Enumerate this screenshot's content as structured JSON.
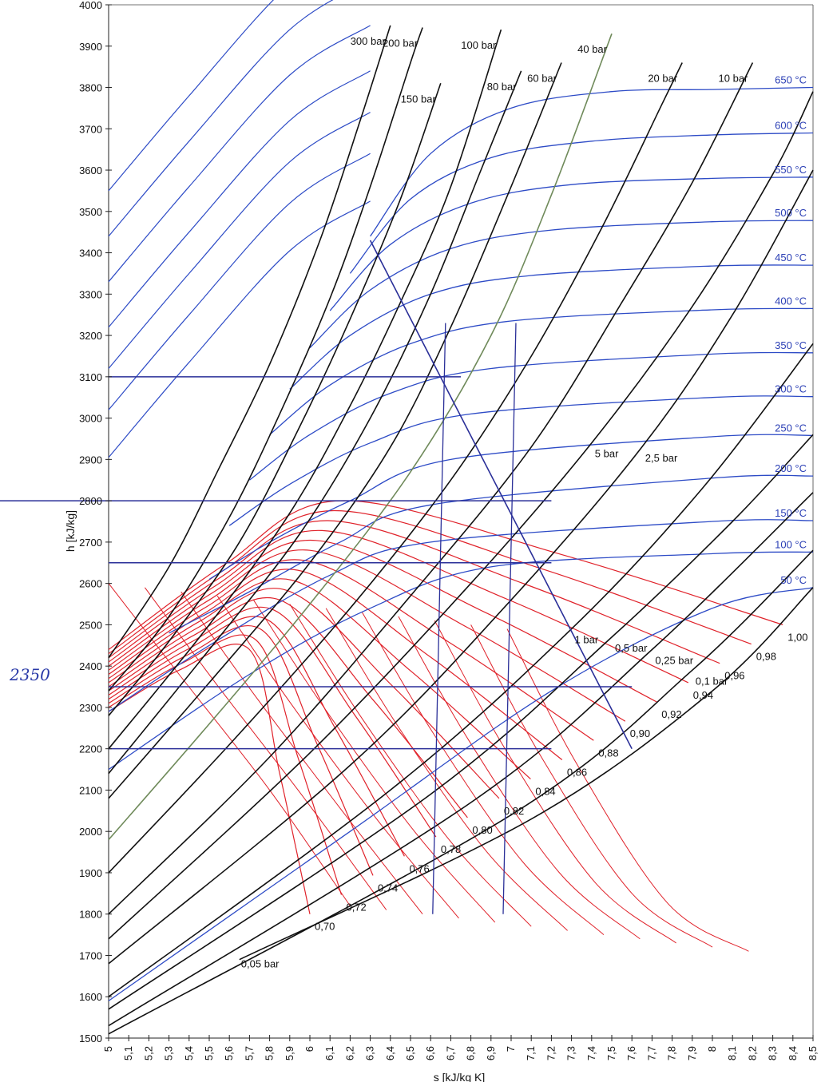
{
  "chart_data": {
    "type": "line",
    "title": "",
    "xlabel": "s [kJ/kg K]",
    "ylabel": "h [kJ/kg]",
    "xlim": [
      5.0,
      8.5
    ],
    "ylim": [
      1500,
      4000
    ],
    "x_ticks": [
      "5",
      "5,1",
      "5,2",
      "5,3",
      "5,4",
      "5,5",
      "5,6",
      "5,7",
      "5,8",
      "5,9",
      "6",
      "6,1",
      "6,2",
      "6,3",
      "6,4",
      "6,5",
      "6,6",
      "6,7",
      "6,8",
      "6,9",
      "7",
      "7,1",
      "7,2",
      "7,3",
      "7,4",
      "7,5",
      "7,6",
      "7,7",
      "7,8",
      "7,9",
      "8",
      "8,1",
      "8,2",
      "8,3",
      "8,4",
      "8,5"
    ],
    "y_ticks": [
      "1500",
      "1600",
      "1700",
      "1800",
      "1900",
      "2000",
      "2100",
      "2200",
      "2300",
      "2400",
      "2500",
      "2600",
      "2700",
      "2800",
      "2900",
      "3000",
      "3100",
      "3200",
      "3300",
      "3400",
      "3500",
      "3600",
      "3700",
      "3800",
      "3900",
      "4000"
    ],
    "colors": {
      "isobar": "#111111",
      "isotherm": "#2d4bc6",
      "quality": "#e0222a",
      "marker": "#2a2f98",
      "isobar_green": "#6f8a5a"
    },
    "isobars": [
      {
        "name": "300 bar",
        "points": [
          [
            5.0,
            2420
          ],
          [
            5.3,
            2640
          ],
          [
            5.55,
            2880
          ],
          [
            5.8,
            3130
          ],
          [
            6.05,
            3430
          ],
          [
            6.25,
            3720
          ],
          [
            6.4,
            3950
          ]
        ]
      },
      {
        "name": "200 bar",
        "points": [
          [
            5.0,
            2340
          ],
          [
            5.3,
            2520
          ],
          [
            5.6,
            2760
          ],
          [
            5.85,
            3010
          ],
          [
            6.1,
            3290
          ],
          [
            6.3,
            3560
          ],
          [
            6.5,
            3860
          ],
          [
            6.56,
            3945
          ]
        ]
      },
      {
        "name": "150 bar",
        "points": [
          [
            5.0,
            2280
          ],
          [
            5.3,
            2460
          ],
          [
            5.65,
            2700
          ],
          [
            5.95,
            2980
          ],
          [
            6.2,
            3240
          ],
          [
            6.45,
            3530
          ],
          [
            6.65,
            3810
          ]
        ]
      },
      {
        "name": "100 bar",
        "points": [
          [
            5.0,
            2200
          ],
          [
            5.5,
            2500
          ],
          [
            5.9,
            2770
          ],
          [
            6.2,
            3030
          ],
          [
            6.45,
            3280
          ],
          [
            6.7,
            3560
          ],
          [
            6.95,
            3940
          ]
        ]
      },
      {
        "name": "80 bar",
        "points": [
          [
            5.0,
            2140
          ],
          [
            5.5,
            2440
          ],
          [
            5.95,
            2720
          ],
          [
            6.3,
            3000
          ],
          [
            6.6,
            3300
          ],
          [
            6.85,
            3600
          ],
          [
            7.05,
            3840
          ]
        ]
      },
      {
        "name": "60 bar",
        "points": [
          [
            5.0,
            2080
          ],
          [
            5.5,
            2360
          ],
          [
            6.0,
            2650
          ],
          [
            6.4,
            2930
          ],
          [
            6.7,
            3220
          ],
          [
            7.0,
            3560
          ],
          [
            7.25,
            3860
          ]
        ]
      },
      {
        "name": "40 bar",
        "points": [
          [
            5.0,
            1980
          ],
          [
            5.5,
            2260
          ],
          [
            6.0,
            2550
          ],
          [
            6.5,
            2870
          ],
          [
            6.9,
            3200
          ],
          [
            7.2,
            3540
          ],
          [
            7.5,
            3930
          ]
        ]
      },
      {
        "name": "20 bar",
        "points": [
          [
            5.0,
            1900
          ],
          [
            5.6,
            2210
          ],
          [
            6.2,
            2540
          ],
          [
            6.7,
            2850
          ],
          [
            7.1,
            3150
          ],
          [
            7.45,
            3460
          ],
          [
            7.75,
            3760
          ],
          [
            7.85,
            3860
          ]
        ]
      },
      {
        "name": "10 bar",
        "points": [
          [
            5.0,
            1800
          ],
          [
            5.8,
            2180
          ],
          [
            6.5,
            2570
          ],
          [
            7.1,
            2930
          ],
          [
            7.55,
            3280
          ],
          [
            7.9,
            3570
          ],
          [
            8.2,
            3860
          ]
        ]
      },
      {
        "name": "5 bar",
        "points": [
          [
            5.0,
            1740
          ],
          [
            6.0,
            2190
          ],
          [
            6.8,
            2600
          ],
          [
            7.4,
            2940
          ],
          [
            7.9,
            3270
          ],
          [
            8.3,
            3590
          ],
          [
            8.5,
            3790
          ]
        ]
      },
      {
        "name": "2,5 bar",
        "points": [
          [
            5.0,
            1680
          ],
          [
            6.2,
            2160
          ],
          [
            7.0,
            2560
          ],
          [
            7.65,
            2930
          ],
          [
            8.1,
            3250
          ],
          [
            8.5,
            3600
          ]
        ]
      },
      {
        "name": "1 bar",
        "points": [
          [
            5.0,
            1600
          ],
          [
            6.4,
            2100
          ],
          [
            7.3,
            2490
          ],
          [
            7.95,
            2830
          ],
          [
            8.5,
            3180
          ]
        ]
      },
      {
        "name": "0,5 bar",
        "points": [
          [
            5.0,
            1570
          ],
          [
            6.6,
            2090
          ],
          [
            7.5,
            2470
          ],
          [
            8.1,
            2750
          ],
          [
            8.5,
            2960
          ]
        ]
      },
      {
        "name": "0,25 bar",
        "points": [
          [
            5.0,
            1530
          ],
          [
            6.8,
            2070
          ],
          [
            7.7,
            2440
          ],
          [
            8.5,
            2820
          ]
        ]
      },
      {
        "name": "0,1 bar",
        "points": [
          [
            5.0,
            1510
          ],
          [
            7.0,
            2040
          ],
          [
            7.9,
            2390
          ],
          [
            8.5,
            2680
          ]
        ]
      },
      {
        "name": "0,05 bar",
        "points": [
          [
            5.65,
            1690
          ],
          [
            7.1,
            2030
          ],
          [
            8.0,
            2340
          ],
          [
            8.5,
            2590
          ]
        ]
      }
    ],
    "isotherms": [
      {
        "name": "650 °C",
        "points": [
          [
            6.3,
            3440
          ],
          [
            6.6,
            3640
          ],
          [
            7.0,
            3750
          ],
          [
            7.5,
            3790
          ],
          [
            8.0,
            3795
          ],
          [
            8.5,
            3800
          ]
        ]
      },
      {
        "name": "600 °C",
        "points": [
          [
            6.2,
            3350
          ],
          [
            6.5,
            3530
          ],
          [
            6.9,
            3630
          ],
          [
            7.4,
            3670
          ],
          [
            8.0,
            3685
          ],
          [
            8.5,
            3690
          ]
        ]
      },
      {
        "name": "550 °C",
        "points": [
          [
            6.1,
            3260
          ],
          [
            6.4,
            3420
          ],
          [
            6.8,
            3520
          ],
          [
            7.3,
            3565
          ],
          [
            8.0,
            3580
          ],
          [
            8.5,
            3583
          ]
        ]
      },
      {
        "name": "500 °C",
        "points": [
          [
            6.0,
            3170
          ],
          [
            6.3,
            3310
          ],
          [
            6.7,
            3410
          ],
          [
            7.2,
            3455
          ],
          [
            8.0,
            3475
          ],
          [
            8.5,
            3478
          ]
        ]
      },
      {
        "name": "450 °C",
        "points": [
          [
            5.9,
            3070
          ],
          [
            6.2,
            3200
          ],
          [
            6.6,
            3300
          ],
          [
            7.1,
            3345
          ],
          [
            8.0,
            3368
          ],
          [
            8.5,
            3370
          ]
        ]
      },
      {
        "name": "400 °C",
        "points": [
          [
            5.8,
            2960
          ],
          [
            6.1,
            3080
          ],
          [
            6.5,
            3180
          ],
          [
            7.0,
            3235
          ],
          [
            8.0,
            3262
          ],
          [
            8.5,
            3265
          ]
        ]
      },
      {
        "name": "350 °C",
        "points": [
          [
            5.7,
            2850
          ],
          [
            6.0,
            2960
          ],
          [
            6.4,
            3060
          ],
          [
            6.9,
            3120
          ],
          [
            8.0,
            3155
          ],
          [
            8.5,
            3158
          ]
        ]
      },
      {
        "name": "300 °C",
        "points": [
          [
            5.6,
            2740
          ],
          [
            5.9,
            2840
          ],
          [
            6.3,
            2940
          ],
          [
            6.8,
            3010
          ],
          [
            8.0,
            3050
          ],
          [
            8.5,
            3052
          ]
        ]
      },
      {
        "name": "250 °C",
        "points": [
          [
            5.5,
            2610
          ],
          [
            5.8,
            2700
          ],
          [
            6.2,
            2800
          ],
          [
            6.7,
            2900
          ],
          [
            8.0,
            2955
          ],
          [
            8.5,
            2958
          ]
        ]
      },
      {
        "name": "200 °C",
        "points": [
          [
            5.3,
            2480
          ],
          [
            5.7,
            2580
          ],
          [
            6.15,
            2700
          ],
          [
            6.6,
            2790
          ],
          [
            8.0,
            2855
          ],
          [
            8.5,
            2860
          ]
        ]
      },
      {
        "name": "150 °C",
        "points": [
          [
            5.0,
            2290
          ],
          [
            5.5,
            2450
          ],
          [
            6.1,
            2620
          ],
          [
            6.6,
            2700
          ],
          [
            8.0,
            2750
          ],
          [
            8.5,
            2752
          ]
        ]
      },
      {
        "name": "100 °C",
        "points": [
          [
            5.0,
            2150
          ],
          [
            5.7,
            2380
          ],
          [
            6.3,
            2540
          ],
          [
            6.9,
            2640
          ],
          [
            8.0,
            2672
          ],
          [
            8.5,
            2676
          ]
        ]
      },
      {
        "name": "50 °C",
        "points": [
          [
            5.0,
            1590
          ],
          [
            6.2,
            2000
          ],
          [
            7.2,
            2340
          ],
          [
            8.0,
            2540
          ],
          [
            8.5,
            2590
          ]
        ]
      }
    ],
    "extra_isotherm_starts": [
      2905,
      3020,
      3120,
      3220,
      3330,
      3440,
      3550
    ],
    "quality_lines": [
      "0,70",
      "0,72",
      "0,74",
      "0,76",
      "0,78",
      "0,80",
      "0,82",
      "0,84",
      "0,86",
      "0,88",
      "0,90",
      "0,92",
      "0,94",
      "0,96",
      "0,98",
      "1,00"
    ],
    "annotations": {
      "handwritten_value": "2350",
      "h_lines": [
        3100,
        2800,
        2650,
        2350,
        2200
      ],
      "s_lines": [
        6.65,
        7.0
      ],
      "expansion_line": [
        [
          6.3,
          3430
        ],
        [
          7.6,
          2200
        ]
      ]
    }
  }
}
